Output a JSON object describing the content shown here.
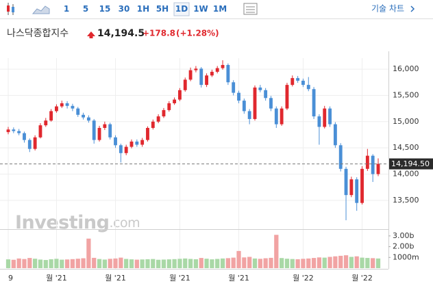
{
  "toolbar": {
    "intervals": [
      "1",
      "5",
      "15",
      "30",
      "1H",
      "5H",
      "1D",
      "1W",
      "1M"
    ],
    "selected": 6,
    "menu": "기술 차트"
  },
  "header": {
    "name": "나스닥종합지수",
    "price": "14,194.5",
    "change": "+178.8",
    "change_pct": "(+1.28%)"
  },
  "chart_data": {
    "type": "candlestick",
    "categories": [
      "9",
      null,
      null,
      null,
      null,
      null,
      null,
      null,
      null,
      "월 '21",
      null,
      null,
      null,
      null,
      null,
      null,
      null,
      null,
      null,
      null,
      "월 '21",
      null,
      null,
      null,
      null,
      null,
      null,
      null,
      null,
      null,
      null,
      null,
      "월 '21",
      null,
      null,
      null,
      null,
      null,
      null,
      null,
      null,
      null,
      null,
      "월 '21",
      null,
      null,
      null,
      null,
      null,
      null,
      null,
      null,
      null,
      null,
      null,
      "월 '22",
      null,
      null,
      null,
      null,
      null,
      null,
      null,
      null,
      null,
      null,
      "월 '22",
      null,
      null,
      null
    ],
    "open": [
      14800,
      14850,
      14820,
      14780,
      14650,
      14480,
      14700,
      14930,
      15020,
      15200,
      15290,
      15350,
      15300,
      15250,
      15130,
      15080,
      15020,
      14650,
      14880,
      14950,
      14700,
      14550,
      14400,
      14520,
      14620,
      14560,
      14650,
      14880,
      15000,
      15100,
      15220,
      15350,
      15420,
      15600,
      15800,
      15980,
      16010,
      15700,
      15880,
      15950,
      16020,
      16080,
      15750,
      15550,
      15400,
      15200,
      15050,
      15650,
      15600,
      15450,
      15250,
      14950,
      15250,
      15700,
      15830,
      15780,
      15700,
      15620,
      15100,
      14900,
      15250,
      14950,
      14550,
      14100,
      13600,
      13900,
      13450,
      14100,
      14350,
      14000
    ],
    "high": [
      14900,
      14890,
      14860,
      14810,
      14680,
      14740,
      14970,
      15070,
      15240,
      15330,
      15400,
      15390,
      15340,
      15280,
      15170,
      15120,
      15050,
      14920,
      15000,
      14980,
      14740,
      14580,
      14560,
      14660,
      14660,
      14690,
      14910,
      15040,
      15140,
      15260,
      15390,
      15460,
      15640,
      15840,
      16030,
      16060,
      16040,
      15920,
      15990,
      16060,
      16170,
      16110,
      15790,
      15590,
      15440,
      15240,
      15690,
      15700,
      15640,
      15490,
      15290,
      15290,
      15740,
      15880,
      15870,
      15820,
      15850,
      15660,
      15140,
      15300,
      15290,
      14990,
      14590,
      14140,
      13950,
      13940,
      14150,
      14480,
      14380,
      14300
    ],
    "low": [
      14760,
      14780,
      14740,
      14600,
      14420,
      14450,
      14680,
      14900,
      15000,
      15170,
      15260,
      15250,
      15200,
      15090,
      15040,
      14980,
      14580,
      14620,
      14840,
      14660,
      14500,
      14220,
      14360,
      14490,
      14520,
      14520,
      14620,
      14850,
      14970,
      15070,
      15190,
      15320,
      15390,
      15570,
      15770,
      15940,
      15650,
      15660,
      15850,
      15920,
      15990,
      15700,
      15500,
      15350,
      15150,
      14950,
      15020,
      15560,
      15400,
      15200,
      14880,
      14920,
      15220,
      15670,
      15740,
      15660,
      15580,
      15050,
      14560,
      14870,
      14900,
      14500,
      14050,
      13120,
      13560,
      13300,
      13420,
      14060,
      13850,
      13960
    ],
    "close": [
      14850,
      14820,
      14780,
      14650,
      14480,
      14700,
      14930,
      15020,
      15200,
      15290,
      15350,
      15300,
      15250,
      15130,
      15080,
      15020,
      14650,
      14880,
      14950,
      14700,
      14550,
      14400,
      14520,
      14620,
      14560,
      14650,
      14880,
      15000,
      15100,
      15220,
      15350,
      15420,
      15600,
      15800,
      15980,
      16010,
      15700,
      15880,
      15950,
      16020,
      16080,
      15750,
      15550,
      15400,
      15200,
      15050,
      15650,
      15600,
      15450,
      15250,
      14950,
      15250,
      15700,
      15830,
      15780,
      15700,
      15620,
      15100,
      14900,
      15250,
      14950,
      14550,
      14100,
      13600,
      13900,
      13450,
      14100,
      14350,
      14000,
      14194.5
    ],
    "volume": [
      820000000,
      780000000,
      900000000,
      850000000,
      950000000,
      880000000,
      800000000,
      760000000,
      830000000,
      870000000,
      790000000,
      810000000,
      840000000,
      880000000,
      920000000,
      2750000000,
      960000000,
      850000000,
      800000000,
      870000000,
      900000000,
      980000000,
      860000000,
      820000000,
      790000000,
      810000000,
      830000000,
      850000000,
      780000000,
      800000000,
      820000000,
      840000000,
      870000000,
      900000000,
      860000000,
      830000000,
      950000000,
      880000000,
      820000000,
      860000000,
      900000000,
      930000000,
      980000000,
      1600000000,
      1000000000,
      1050000000,
      900000000,
      870000000,
      920000000,
      960000000,
      3100000000,
      940000000,
      880000000,
      850000000,
      830000000,
      870000000,
      900000000,
      950000000,
      1000000000,
      980000000,
      1050000000,
      1100000000,
      1150000000,
      1200000000,
      1050000000,
      1100000000,
      980000000,
      950000000,
      930000000,
      900000000
    ],
    "up_color": "#e0282e",
    "down_color": "#4a8fd6",
    "volume_up_color": "#a9d8a6",
    "volume_down_color": "#f1a3a3",
    "ylim": [
      12950,
      16210
    ],
    "yticks": [
      {
        "value": 13500,
        "label": "13,500"
      },
      {
        "value": 14000,
        "label": "14,000"
      },
      {
        "value": 14500,
        "label": "14,500"
      },
      {
        "value": 15000,
        "label": "15,000"
      },
      {
        "value": 15500,
        "label": "15,500"
      },
      {
        "value": 16000,
        "label": "16,000"
      }
    ],
    "volume_lim": [
      0,
      3500000000
    ],
    "volume_ticks": [
      {
        "value": 3000000000,
        "label": "3.00b"
      },
      {
        "value": 2000000000,
        "label": "2.00b"
      },
      {
        "value": 1000000000,
        "label": "1000m"
      }
    ],
    "last_price": {
      "value": 14194.5,
      "label": "14,194.50"
    },
    "grid": true,
    "watermark": {
      "brand": "Investing",
      "suffix": ".com"
    }
  }
}
